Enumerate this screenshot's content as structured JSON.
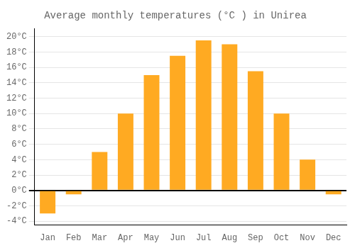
{
  "chart_data": {
    "type": "bar",
    "title": "Average monthly temperatures (°C ) in Unirea",
    "categories": [
      "Jan",
      "Feb",
      "Mar",
      "Apr",
      "May",
      "Jun",
      "Jul",
      "Aug",
      "Sep",
      "Oct",
      "Nov",
      "Dec"
    ],
    "values": [
      -3.0,
      -0.5,
      5.0,
      10.0,
      15.0,
      17.5,
      19.5,
      19.0,
      15.5,
      10.0,
      4.0,
      -0.5
    ],
    "color": "#FFAA22",
    "ylim": [
      -4.5,
      21
    ],
    "yticks": [
      {
        "value": -4,
        "label": "-4°C"
      },
      {
        "value": -2,
        "label": "-2°C"
      },
      {
        "value": 0,
        "label": "0°C"
      },
      {
        "value": 2,
        "label": "2°C"
      },
      {
        "value": 4,
        "label": "4°C"
      },
      {
        "value": 6,
        "label": "6°C"
      },
      {
        "value": 8,
        "label": "8°C"
      },
      {
        "value": 10,
        "label": "10°C"
      },
      {
        "value": 12,
        "label": "12°C"
      },
      {
        "value": 14,
        "label": "14°C"
      },
      {
        "value": 16,
        "label": "16°C"
      },
      {
        "value": 18,
        "label": "18°C"
      },
      {
        "value": 20,
        "label": "20°C"
      }
    ],
    "grid": true
  }
}
